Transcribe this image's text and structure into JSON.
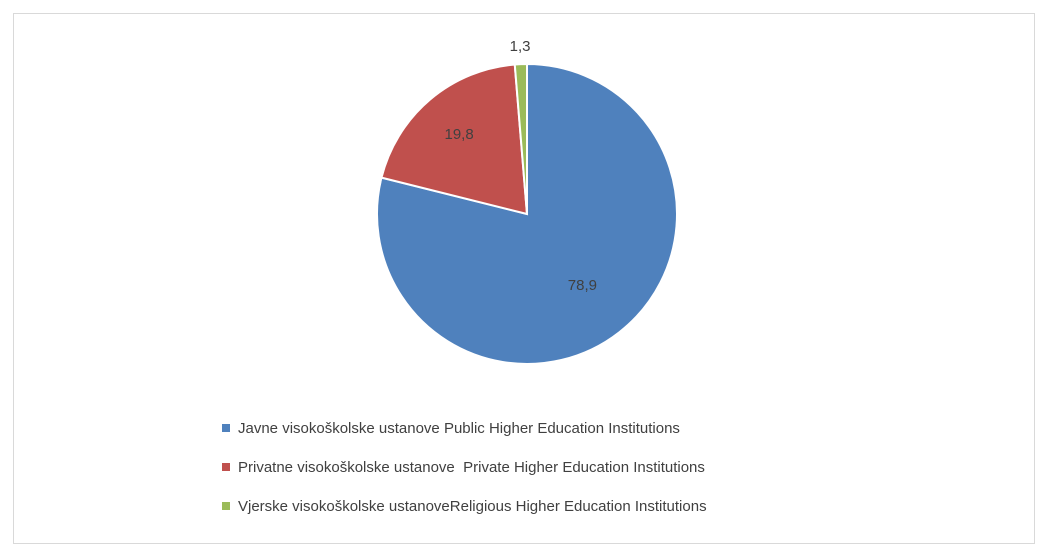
{
  "chart_data": {
    "type": "pie",
    "series": [
      {
        "name": "Javne visokoškolske ustanove Public Higher Education Institutions",
        "value": 78.9,
        "label": "78,9",
        "color": "#4f81bd"
      },
      {
        "name": "Privatne visokoškolske ustanove  Private Higher Education Institutions",
        "value": 19.8,
        "label": "19,8",
        "color": "#c0504d"
      },
      {
        "name": "Vjerske visokoškolske ustanoveReligious Higher Education Institutions",
        "value": 1.3,
        "label": "1,3",
        "color": "#9bbb59"
      }
    ],
    "start_angle_deg": 0,
    "direction": "clockwise",
    "legend_position": "bottom"
  }
}
